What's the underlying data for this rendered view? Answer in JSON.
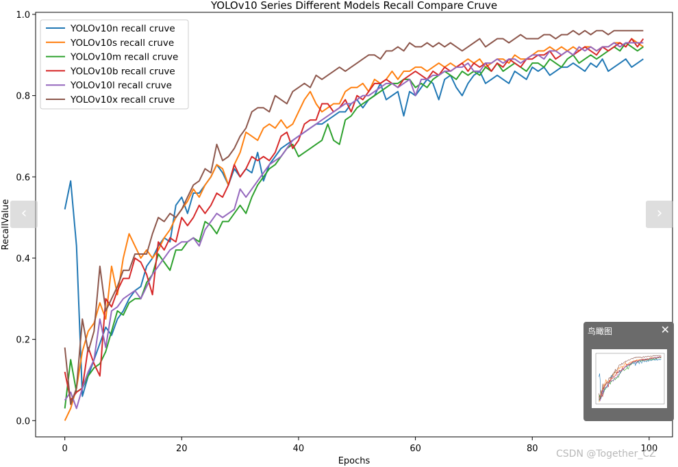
{
  "chart_data": {
    "type": "line",
    "title": "YOLOv10 Series Different Models Recall Compare Cruve",
    "xlabel": "Epochs",
    "ylabel": "RecallValue",
    "xlim": [
      -5,
      104
    ],
    "ylim": [
      -0.04,
      1.005
    ],
    "xticks": [
      0,
      20,
      40,
      60,
      80,
      100
    ],
    "xtick_labels": [
      "0",
      "20",
      "40",
      "60",
      "80",
      "100"
    ],
    "yticks": [
      0.0,
      0.2,
      0.4,
      0.6,
      0.8,
      1.0
    ],
    "ytick_labels": [
      "0.0",
      "0.2",
      "0.4",
      "0.6",
      "0.8",
      "1.0"
    ],
    "grid": false,
    "legend_position": "upper-left",
    "x": [
      0,
      1,
      2,
      3,
      4,
      5,
      6,
      7,
      8,
      9,
      10,
      11,
      12,
      13,
      14,
      15,
      16,
      17,
      18,
      19,
      20,
      21,
      22,
      23,
      24,
      25,
      26,
      27,
      28,
      29,
      30,
      31,
      32,
      33,
      34,
      35,
      36,
      37,
      38,
      39,
      40,
      41,
      42,
      43,
      44,
      45,
      46,
      47,
      48,
      49,
      50,
      51,
      52,
      53,
      54,
      55,
      56,
      57,
      58,
      59,
      60,
      61,
      62,
      63,
      64,
      65,
      66,
      67,
      68,
      69,
      70,
      71,
      72,
      73,
      74,
      75,
      76,
      77,
      78,
      79,
      80,
      81,
      82,
      83,
      84,
      85,
      86,
      87,
      88,
      89,
      90,
      91,
      92,
      93,
      94,
      95,
      96,
      97,
      98,
      99
    ],
    "series": [
      {
        "name": "YOLOv10n recall cruve",
        "color": "#1f77b4",
        "values": [
          0.52,
          0.59,
          0.43,
          0.06,
          0.11,
          0.15,
          0.19,
          0.23,
          0.21,
          0.25,
          0.27,
          0.3,
          0.32,
          0.33,
          0.38,
          0.4,
          0.43,
          0.45,
          0.44,
          0.53,
          0.55,
          0.51,
          0.56,
          0.56,
          0.58,
          0.6,
          0.63,
          0.61,
          0.58,
          0.62,
          0.6,
          0.62,
          0.61,
          0.66,
          0.59,
          0.63,
          0.65,
          0.67,
          0.68,
          0.69,
          0.7,
          0.71,
          0.72,
          0.73,
          0.73,
          0.74,
          0.75,
          0.76,
          0.76,
          0.78,
          0.79,
          0.77,
          0.79,
          0.8,
          0.83,
          0.79,
          0.8,
          0.81,
          0.75,
          0.81,
          0.8,
          0.82,
          0.84,
          0.83,
          0.79,
          0.84,
          0.85,
          0.82,
          0.8,
          0.83,
          0.85,
          0.86,
          0.83,
          0.84,
          0.85,
          0.84,
          0.83,
          0.86,
          0.85,
          0.84,
          0.87,
          0.86,
          0.87,
          0.85,
          0.86,
          0.87,
          0.87,
          0.88,
          0.87,
          0.86,
          0.88,
          0.87,
          0.89,
          0.86,
          0.87,
          0.88,
          0.89,
          0.87,
          0.88,
          0.89
        ]
      },
      {
        "name": "YOLOv10s recall cruve",
        "color": "#ff7f0e",
        "values": [
          0.0,
          0.03,
          0.08,
          0.17,
          0.22,
          0.24,
          0.29,
          0.25,
          0.38,
          0.31,
          0.4,
          0.46,
          0.43,
          0.4,
          0.42,
          0.4,
          0.42,
          0.45,
          0.47,
          0.5,
          0.52,
          0.54,
          0.57,
          0.55,
          0.58,
          0.6,
          0.63,
          0.62,
          0.58,
          0.63,
          0.66,
          0.71,
          0.7,
          0.69,
          0.72,
          0.73,
          0.72,
          0.74,
          0.72,
          0.73,
          0.76,
          0.79,
          0.81,
          0.78,
          0.76,
          0.77,
          0.78,
          0.78,
          0.81,
          0.82,
          0.82,
          0.83,
          0.81,
          0.84,
          0.83,
          0.84,
          0.86,
          0.84,
          0.86,
          0.86,
          0.87,
          0.87,
          0.86,
          0.87,
          0.88,
          0.87,
          0.88,
          0.87,
          0.88,
          0.89,
          0.88,
          0.89,
          0.87,
          0.88,
          0.89,
          0.89,
          0.88,
          0.9,
          0.89,
          0.89,
          0.9,
          0.91,
          0.91,
          0.92,
          0.91,
          0.92,
          0.91,
          0.92,
          0.91,
          0.92,
          0.92,
          0.91,
          0.92,
          0.92,
          0.93,
          0.93,
          0.92,
          0.94,
          0.93,
          0.92
        ]
      },
      {
        "name": "YOLOv10m recall cruve",
        "color": "#2ca02c",
        "values": [
          0.03,
          0.15,
          0.07,
          0.08,
          0.11,
          0.13,
          0.14,
          0.17,
          0.22,
          0.27,
          0.26,
          0.29,
          0.3,
          0.3,
          0.34,
          0.36,
          0.41,
          0.39,
          0.37,
          0.42,
          0.42,
          0.44,
          0.45,
          0.44,
          0.49,
          0.48,
          0.46,
          0.49,
          0.49,
          0.51,
          0.53,
          0.51,
          0.55,
          0.58,
          0.6,
          0.62,
          0.63,
          0.65,
          0.67,
          0.68,
          0.65,
          0.66,
          0.67,
          0.68,
          0.69,
          0.73,
          0.69,
          0.68,
          0.74,
          0.75,
          0.77,
          0.78,
          0.79,
          0.8,
          0.81,
          0.82,
          0.83,
          0.83,
          0.84,
          0.84,
          0.82,
          0.83,
          0.82,
          0.84,
          0.85,
          0.86,
          0.85,
          0.84,
          0.86,
          0.85,
          0.86,
          0.85,
          0.87,
          0.86,
          0.88,
          0.86,
          0.87,
          0.88,
          0.87,
          0.86,
          0.88,
          0.88,
          0.87,
          0.89,
          0.88,
          0.87,
          0.89,
          0.9,
          0.88,
          0.89,
          0.9,
          0.89,
          0.9,
          0.91,
          0.92,
          0.91,
          0.93,
          0.92,
          0.91,
          0.92
        ]
      },
      {
        "name": "YOLOv10b recall cruve",
        "color": "#d62728",
        "values": [
          0.12,
          0.05,
          0.07,
          0.08,
          0.18,
          0.14,
          0.11,
          0.3,
          0.28,
          0.32,
          0.35,
          0.35,
          0.4,
          0.39,
          0.36,
          0.31,
          0.44,
          0.42,
          0.45,
          0.44,
          0.5,
          0.48,
          0.5,
          0.53,
          0.51,
          0.53,
          0.56,
          0.55,
          0.58,
          0.63,
          0.6,
          0.62,
          0.65,
          0.64,
          0.65,
          0.64,
          0.66,
          0.7,
          0.71,
          0.67,
          0.69,
          0.73,
          0.74,
          0.74,
          0.78,
          0.78,
          0.76,
          0.77,
          0.79,
          0.76,
          0.8,
          0.79,
          0.81,
          0.83,
          0.83,
          0.84,
          0.83,
          0.82,
          0.84,
          0.85,
          0.86,
          0.85,
          0.84,
          0.86,
          0.85,
          0.87,
          0.86,
          0.87,
          0.88,
          0.86,
          0.88,
          0.87,
          0.88,
          0.86,
          0.88,
          0.87,
          0.89,
          0.88,
          0.87,
          0.89,
          0.89,
          0.9,
          0.9,
          0.91,
          0.89,
          0.9,
          0.91,
          0.9,
          0.91,
          0.92,
          0.91,
          0.9,
          0.92,
          0.91,
          0.92,
          0.93,
          0.92,
          0.94,
          0.92,
          0.94
        ]
      },
      {
        "name": "YOLOv10l recall cruve",
        "color": "#9467bd",
        "values": [
          0.05,
          0.07,
          0.03,
          0.08,
          0.12,
          0.15,
          0.25,
          0.18,
          0.27,
          0.28,
          0.3,
          0.31,
          0.32,
          0.3,
          0.33,
          0.36,
          0.38,
          0.4,
          0.42,
          0.43,
          0.44,
          0.44,
          0.45,
          0.43,
          0.47,
          0.49,
          0.51,
          0.5,
          0.51,
          0.52,
          0.57,
          0.55,
          0.57,
          0.59,
          0.61,
          0.63,
          0.64,
          0.65,
          0.67,
          0.69,
          0.7,
          0.71,
          0.72,
          0.73,
          0.74,
          0.75,
          0.76,
          0.77,
          0.78,
          0.78,
          0.79,
          0.8,
          0.8,
          0.81,
          0.82,
          0.83,
          0.83,
          0.82,
          0.83,
          0.84,
          0.8,
          0.84,
          0.84,
          0.85,
          0.85,
          0.86,
          0.86,
          0.87,
          0.87,
          0.88,
          0.86,
          0.86,
          0.88,
          0.88,
          0.89,
          0.88,
          0.89,
          0.89,
          0.88,
          0.89,
          0.9,
          0.9,
          0.89,
          0.91,
          0.91,
          0.9,
          0.91,
          0.9,
          0.92,
          0.91,
          0.92,
          0.91,
          0.92,
          0.92,
          0.93,
          0.92,
          0.93,
          0.93,
          0.93,
          0.93
        ]
      },
      {
        "name": "YOLOv10x recall cruve",
        "color": "#8c564b",
        "values": [
          0.18,
          0.04,
          0.08,
          0.25,
          0.17,
          0.22,
          0.38,
          0.27,
          0.3,
          0.33,
          0.37,
          0.37,
          0.41,
          0.41,
          0.41,
          0.46,
          0.5,
          0.49,
          0.51,
          0.5,
          0.52,
          0.55,
          0.58,
          0.59,
          0.62,
          0.61,
          0.68,
          0.64,
          0.65,
          0.67,
          0.7,
          0.72,
          0.76,
          0.77,
          0.77,
          0.76,
          0.8,
          0.79,
          0.78,
          0.81,
          0.82,
          0.83,
          0.82,
          0.85,
          0.84,
          0.85,
          0.86,
          0.87,
          0.86,
          0.87,
          0.88,
          0.89,
          0.9,
          0.9,
          0.89,
          0.91,
          0.91,
          0.92,
          0.91,
          0.93,
          0.92,
          0.92,
          0.93,
          0.92,
          0.93,
          0.92,
          0.93,
          0.92,
          0.91,
          0.92,
          0.93,
          0.94,
          0.92,
          0.93,
          0.94,
          0.94,
          0.93,
          0.94,
          0.95,
          0.94,
          0.94,
          0.94,
          0.95,
          0.95,
          0.94,
          0.95,
          0.95,
          0.96,
          0.95,
          0.96,
          0.95,
          0.96,
          0.96,
          0.95,
          0.96,
          0.96,
          0.96,
          0.96,
          0.96,
          0.96
        ]
      }
    ]
  },
  "nav": {
    "prev_glyph": "‹",
    "next_glyph": "›"
  },
  "birdseye": {
    "title": "鸟瞰图",
    "close_glyph": "✕"
  },
  "watermark": {
    "text": "CSDN @Together_CZ"
  }
}
